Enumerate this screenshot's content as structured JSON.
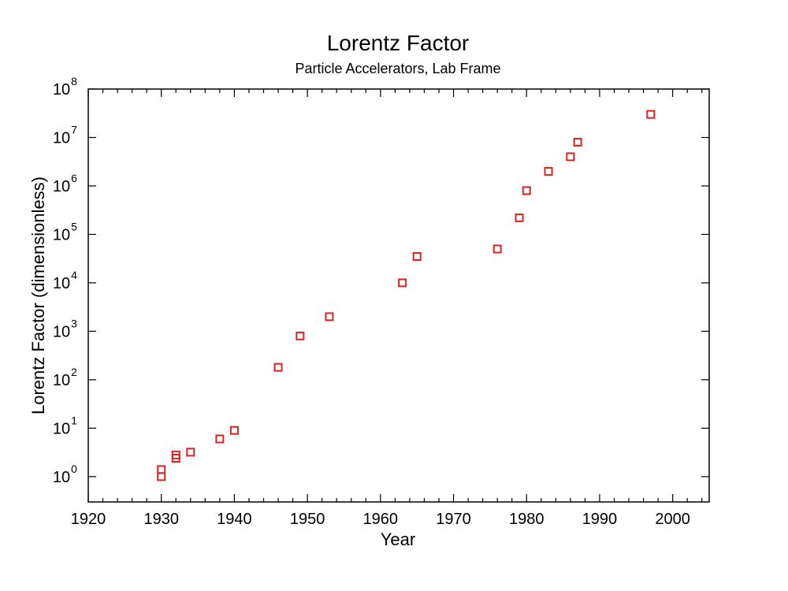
{
  "chart_data": {
    "type": "scatter",
    "title": "Lorentz Factor",
    "subtitle": "Particle Accelerators, Lab Frame",
    "xlabel": "Year",
    "ylabel": "Lorentz Factor (dimensionless)",
    "xlim": [
      1920,
      2005
    ],
    "ylim": [
      0.3,
      100000000
    ],
    "yscale": "log",
    "x_ticks": [
      1920,
      1930,
      1940,
      1950,
      1960,
      1970,
      1980,
      1990,
      2000
    ],
    "x_tick_labels": [
      "1920",
      "1930",
      "1940",
      "1950",
      "1960",
      "1970",
      "1980",
      "1990",
      "2000"
    ],
    "y_ticks": [
      1,
      10,
      100,
      1000,
      10000,
      100000,
      1000000,
      10000000,
      100000000
    ],
    "y_tick_labels": [
      {
        "base": "10",
        "exp": "0"
      },
      {
        "base": "10",
        "exp": "1"
      },
      {
        "base": "10",
        "exp": "2"
      },
      {
        "base": "10",
        "exp": "3"
      },
      {
        "base": "10",
        "exp": "4"
      },
      {
        "base": "10",
        "exp": "5"
      },
      {
        "base": "10",
        "exp": "6"
      },
      {
        "base": "10",
        "exp": "7"
      },
      {
        "base": "10",
        "exp": "8"
      }
    ],
    "grid": false,
    "marker": "open-square",
    "marker_color": "#dd2222",
    "series": [
      {
        "points": [
          {
            "x": 1930,
            "y": 1.0
          },
          {
            "x": 1930,
            "y": 1.4
          },
          {
            "x": 1932,
            "y": 2.4
          },
          {
            "x": 1932,
            "y": 2.8
          },
          {
            "x": 1934,
            "y": 3.2
          },
          {
            "x": 1938,
            "y": 6
          },
          {
            "x": 1940,
            "y": 9
          },
          {
            "x": 1946,
            "y": 180
          },
          {
            "x": 1949,
            "y": 800
          },
          {
            "x": 1953,
            "y": 2000
          },
          {
            "x": 1963,
            "y": 10000
          },
          {
            "x": 1965,
            "y": 35000
          },
          {
            "x": 1976,
            "y": 50000
          },
          {
            "x": 1979,
            "y": 220000
          },
          {
            "x": 1980,
            "y": 800000
          },
          {
            "x": 1983,
            "y": 2000000
          },
          {
            "x": 1986,
            "y": 4000000
          },
          {
            "x": 1987,
            "y": 8000000
          },
          {
            "x": 1997,
            "y": 30000000
          }
        ]
      }
    ]
  }
}
